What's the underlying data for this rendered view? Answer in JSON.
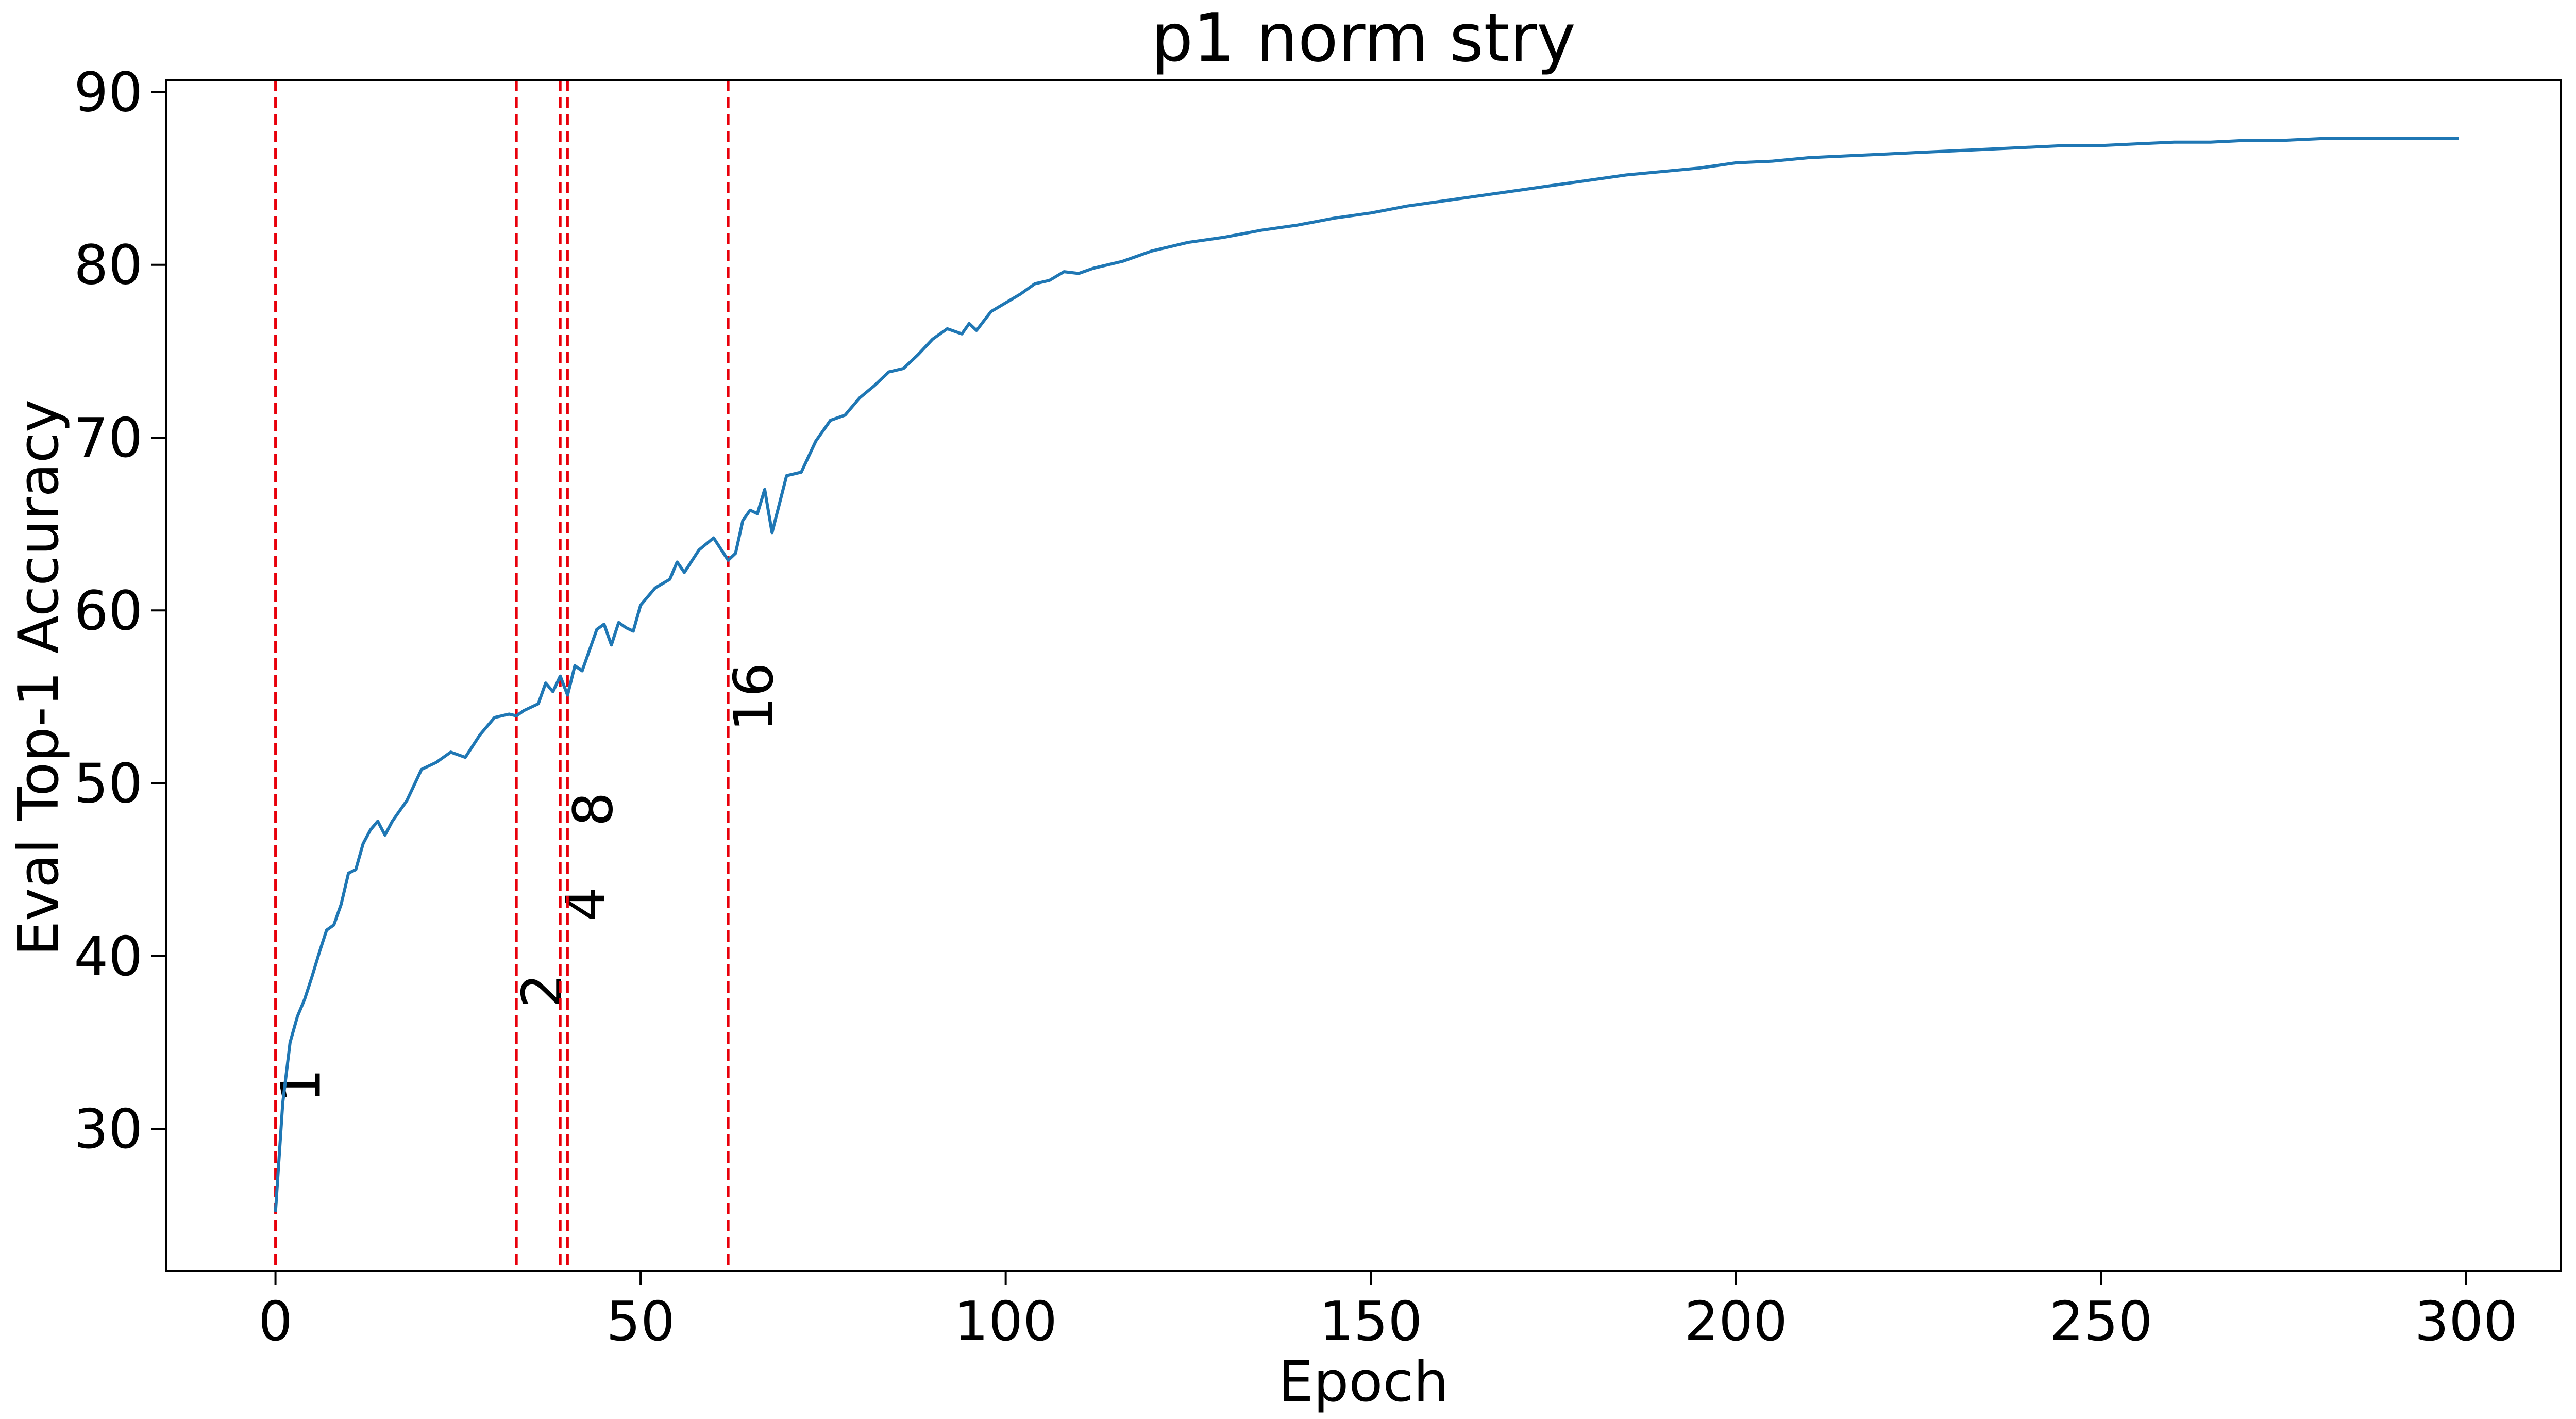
{
  "chart_data": {
    "type": "line",
    "title": "p1 norm stry",
    "xlabel": "Epoch",
    "ylabel": "Eval Top-1 Accuracy",
    "xlim": [
      -15,
      313
    ],
    "ylim": [
      21.8,
      90.7
    ],
    "xticks": [
      0,
      50,
      100,
      150,
      200,
      250,
      300
    ],
    "yticks": [
      30,
      40,
      50,
      60,
      70,
      80,
      90
    ],
    "grid": false,
    "series": [
      {
        "color": "#1f77b4",
        "x": [
          0,
          1,
          2,
          3,
          4,
          5,
          6,
          7,
          8,
          9,
          10,
          11,
          12,
          13,
          14,
          15,
          16,
          18,
          20,
          22,
          24,
          26,
          28,
          30,
          32,
          33,
          34,
          36,
          37,
          38,
          39,
          40,
          41,
          42,
          44,
          45,
          46,
          47,
          48,
          49,
          50,
          52,
          54,
          55,
          56,
          58,
          60,
          62,
          63,
          64,
          65,
          66,
          67,
          68,
          70,
          72,
          74,
          76,
          78,
          80,
          82,
          84,
          86,
          88,
          90,
          92,
          94,
          95,
          96,
          98,
          100,
          102,
          104,
          106,
          108,
          110,
          112,
          114,
          116,
          118,
          120,
          125,
          130,
          135,
          140,
          145,
          150,
          155,
          160,
          165,
          170,
          175,
          180,
          185,
          190,
          195,
          200,
          205,
          210,
          215,
          220,
          225,
          230,
          235,
          240,
          245,
          250,
          255,
          260,
          265,
          270,
          275,
          280,
          285,
          290,
          295,
          299
        ],
        "y": [
          25.2,
          31.5,
          35.0,
          36.5,
          37.5,
          38.8,
          40.2,
          41.5,
          41.8,
          43.0,
          44.8,
          45.0,
          46.5,
          47.3,
          47.8,
          47.0,
          47.8,
          49.0,
          50.8,
          51.2,
          51.8,
          51.5,
          52.8,
          53.8,
          54.0,
          53.9,
          54.2,
          54.6,
          55.8,
          55.3,
          56.2,
          55.1,
          56.8,
          56.5,
          58.9,
          59.2,
          58.0,
          59.3,
          59.0,
          58.8,
          60.3,
          61.3,
          61.8,
          62.8,
          62.2,
          63.5,
          64.2,
          62.9,
          63.3,
          65.2,
          65.8,
          65.6,
          67.0,
          64.5,
          67.8,
          68.0,
          69.8,
          71.0,
          71.3,
          72.3,
          73.0,
          73.8,
          74.0,
          74.8,
          75.7,
          76.3,
          76.0,
          76.6,
          76.2,
          77.3,
          77.8,
          78.3,
          78.9,
          79.1,
          79.6,
          79.5,
          79.8,
          80.0,
          80.2,
          80.5,
          80.8,
          81.3,
          81.6,
          82.0,
          82.3,
          82.7,
          83.0,
          83.4,
          83.7,
          84.0,
          84.3,
          84.6,
          84.9,
          85.2,
          85.4,
          85.6,
          85.9,
          86.0,
          86.2,
          86.3,
          86.4,
          86.5,
          86.6,
          86.7,
          86.8,
          86.9,
          86.9,
          87.0,
          87.1,
          87.1,
          87.2,
          87.2,
          87.3,
          87.3,
          87.3,
          87.3,
          87.3
        ]
      }
    ],
    "vlines": [
      {
        "x": 0,
        "label": "1",
        "label_y": 31.5,
        "color": "#e8000b"
      },
      {
        "x": 33,
        "label": "2",
        "label_y": 37.0,
        "color": "#e8000b"
      },
      {
        "x": 39,
        "label": "4",
        "label_y": 42.0,
        "color": "#e8000b"
      },
      {
        "x": 40,
        "label": "8",
        "label_y": 47.5,
        "color": "#e8000b"
      },
      {
        "x": 62,
        "label": "16",
        "label_y": 53.0,
        "color": "#e8000b"
      }
    ]
  }
}
